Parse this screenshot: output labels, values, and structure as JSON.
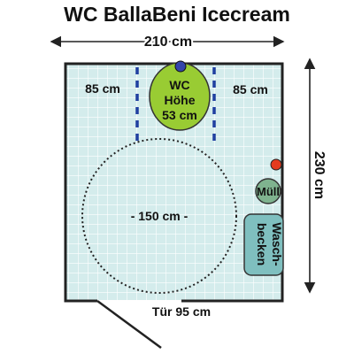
{
  "title": "WC BallaBeni Icecream",
  "width_label": "210 cm",
  "height_label": "230 cm",
  "left_clearance": "85 cm",
  "right_clearance": "85 cm",
  "toilet": {
    "line1": "WC",
    "line2": "Höhe",
    "line3": "53 cm"
  },
  "turning_circle": "- 150 cm -",
  "bin": "Müll",
  "sink": {
    "line1": "Wasch-",
    "line2": "becken"
  },
  "door": "Tür 95 cm",
  "colors": {
    "tile": "#d4ecec",
    "grout": "#ffffff",
    "toilet": "#99cc33",
    "bin": "#7fb38f",
    "sink": "#7fbfbf",
    "rail": "#1f3fa0",
    "alarm": "#e53b1e"
  }
}
